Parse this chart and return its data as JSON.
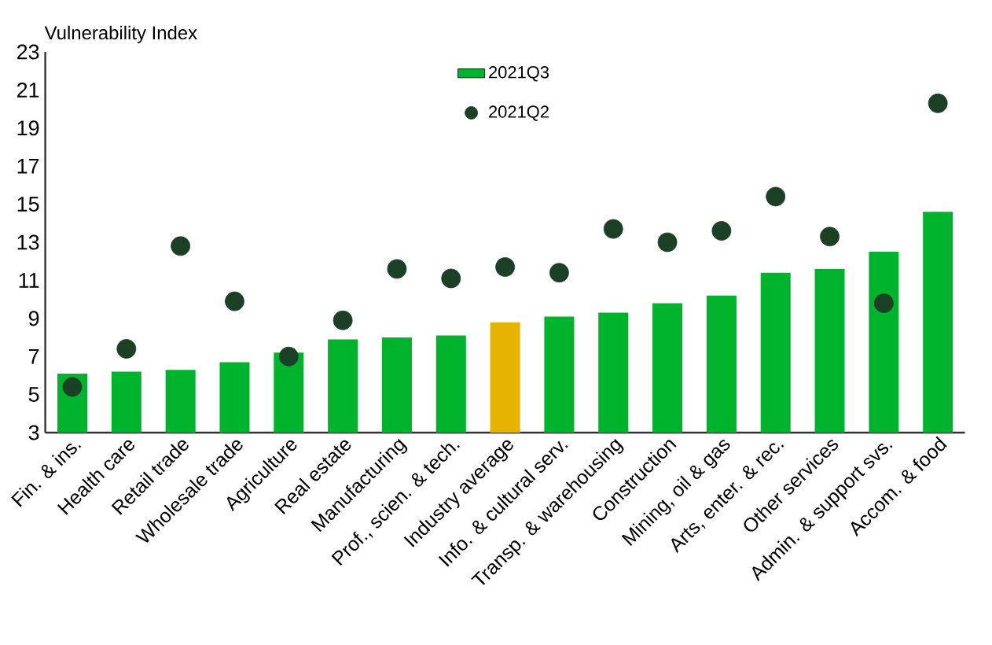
{
  "chart_data": {
    "type": "bar",
    "ylabel": "Vulnerability Index",
    "categories": [
      "Fin. & ins.",
      "Health care",
      "Retail trade",
      "Wholesale trade",
      "Agriculture",
      "Real estate",
      "Manufacturing",
      "Prof., scien. & tech.",
      "Industry average",
      "Info. & cultural serv.",
      "Transp. & warehousing",
      "Construction",
      "Mining, oil & gas",
      "Arts, enter. & rec.",
      "Other services",
      "Admin. & support svs.",
      "Accom. & food"
    ],
    "series": [
      {
        "name": "2021Q3",
        "color": "#00b32c",
        "colors": [
          "#00b32c",
          "#00b32c",
          "#00b32c",
          "#00b32c",
          "#00b32c",
          "#00b32c",
          "#00b32c",
          "#00b32c",
          "#e6b400",
          "#00b32c",
          "#00b32c",
          "#00b32c",
          "#00b32c",
          "#00b32c",
          "#00b32c",
          "#00b32c",
          "#00b32c"
        ],
        "values": [
          6.1,
          6.2,
          6.3,
          6.7,
          7.2,
          7.9,
          8.0,
          8.1,
          8.8,
          9.1,
          9.3,
          9.8,
          10.2,
          11.4,
          11.6,
          12.5,
          14.6
        ]
      },
      {
        "name": "2021Q2",
        "type": "scatter",
        "color": "#1b4025",
        "values": [
          5.4,
          7.4,
          12.8,
          9.9,
          7.0,
          8.9,
          11.6,
          11.1,
          11.7,
          11.4,
          13.7,
          13.0,
          13.6,
          15.4,
          13.3,
          9.8,
          20.3
        ]
      }
    ],
    "ylim": [
      3,
      23
    ],
    "yticks": [
      3,
      5,
      7,
      9,
      11,
      13,
      15,
      17,
      19,
      21,
      23
    ],
    "grid": false,
    "legend": "top",
    "marker": "circle"
  }
}
